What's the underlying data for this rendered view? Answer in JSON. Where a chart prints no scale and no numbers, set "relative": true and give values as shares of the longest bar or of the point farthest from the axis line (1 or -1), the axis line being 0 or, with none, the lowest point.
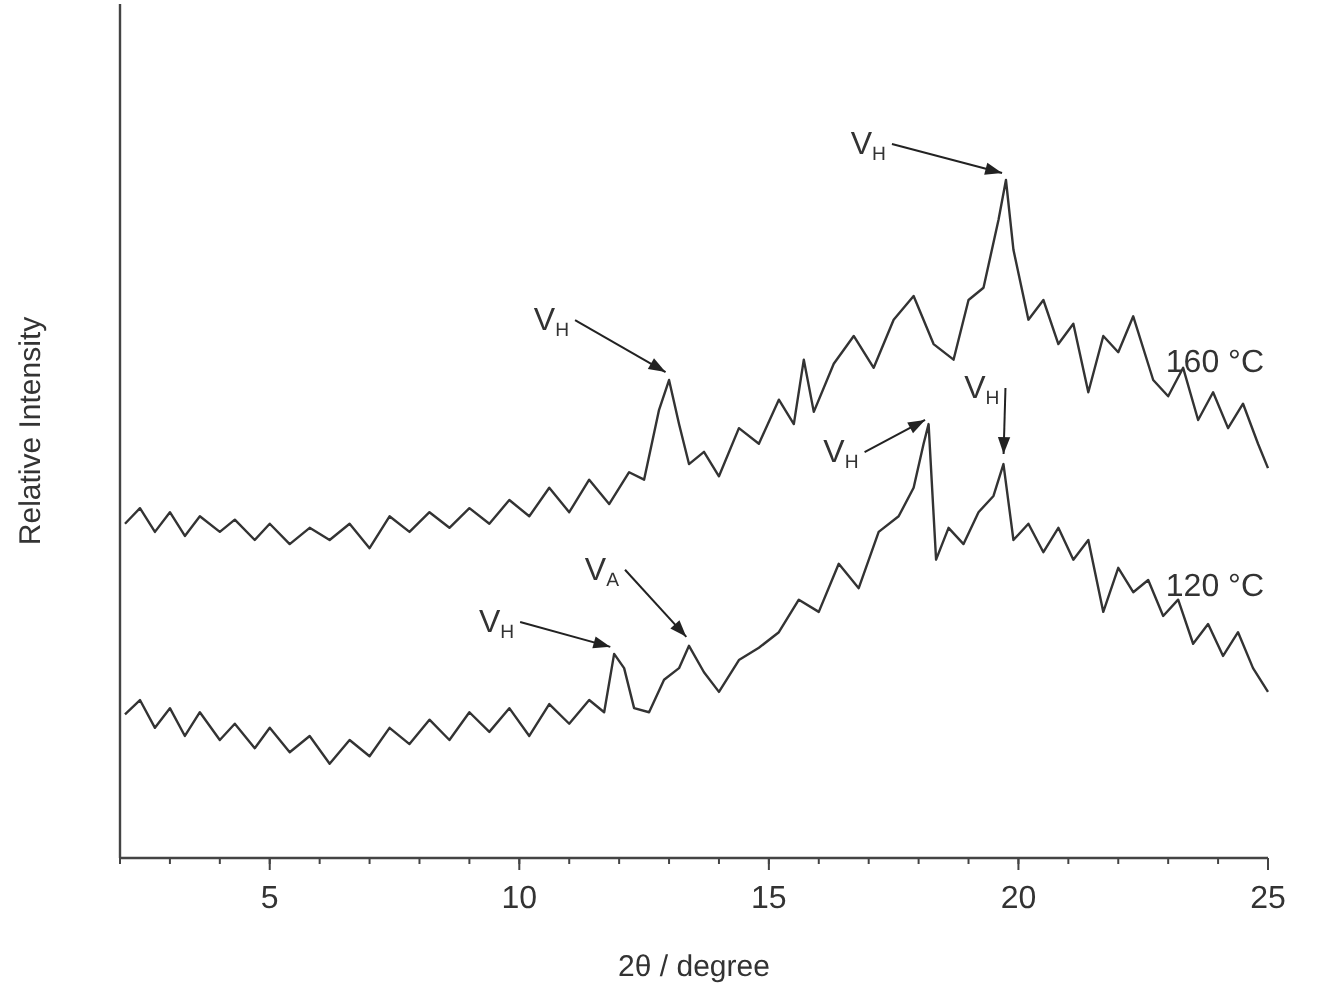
{
  "chart_data": {
    "type": "line",
    "relative": true,
    "xlabel": "2θ / degree",
    "ylabel": "Relative Intensity",
    "xlim": [
      2,
      25
    ],
    "xticks": [
      5,
      10,
      15,
      20,
      25
    ],
    "grid": false,
    "legend": false,
    "marker": "none",
    "line_style": "solid",
    "series": [
      {
        "name": "160 °C",
        "color": "#333333",
        "x": [
          2.1,
          2.4,
          2.7,
          3.0,
          3.3,
          3.6,
          4.0,
          4.3,
          4.7,
          5.0,
          5.4,
          5.8,
          6.2,
          6.6,
          7.0,
          7.4,
          7.8,
          8.2,
          8.6,
          9.0,
          9.4,
          9.8,
          10.2,
          10.6,
          11.0,
          11.4,
          11.8,
          12.2,
          12.5,
          12.8,
          13.0,
          13.2,
          13.4,
          13.7,
          14.0,
          14.4,
          14.8,
          15.2,
          15.5,
          15.7,
          15.9,
          16.3,
          16.7,
          17.1,
          17.5,
          17.9,
          18.3,
          18.7,
          19.0,
          19.3,
          19.6,
          19.75,
          19.9,
          20.2,
          20.5,
          20.8,
          21.1,
          21.4,
          21.7,
          22.0,
          22.3,
          22.7,
          23.0,
          23.3,
          23.6,
          23.9,
          24.2,
          24.5,
          24.8,
          25.0
        ],
        "values": [
          0.493,
          0.516,
          0.481,
          0.51,
          0.475,
          0.504,
          0.481,
          0.499,
          0.469,
          0.493,
          0.463,
          0.487,
          0.469,
          0.493,
          0.457,
          0.504,
          0.481,
          0.51,
          0.487,
          0.516,
          0.493,
          0.528,
          0.504,
          0.546,
          0.51,
          0.558,
          0.522,
          0.569,
          0.558,
          0.661,
          0.705,
          0.64,
          0.581,
          0.599,
          0.563,
          0.634,
          0.611,
          0.676,
          0.64,
          0.735,
          0.658,
          0.729,
          0.77,
          0.723,
          0.794,
          0.829,
          0.758,
          0.735,
          0.823,
          0.841,
          0.941,
          1,
          0.897,
          0.794,
          0.823,
          0.758,
          0.788,
          0.687,
          0.77,
          0.746,
          0.799,
          0.705,
          0.681,
          0.723,
          0.646,
          0.687,
          0.634,
          0.67,
          0.611,
          0.575
        ]
      },
      {
        "name": "120 °C",
        "color": "#333333",
        "x": [
          2.1,
          2.4,
          2.7,
          3.0,
          3.3,
          3.6,
          4.0,
          4.3,
          4.7,
          5.0,
          5.4,
          5.8,
          6.2,
          6.6,
          7.0,
          7.4,
          7.8,
          8.2,
          8.6,
          9.0,
          9.4,
          9.8,
          10.2,
          10.6,
          11.0,
          11.4,
          11.7,
          11.9,
          12.1,
          12.3,
          12.6,
          12.9,
          13.2,
          13.4,
          13.7,
          14.0,
          14.4,
          14.8,
          15.2,
          15.6,
          16.0,
          16.4,
          16.8,
          17.2,
          17.6,
          17.9,
          18.1,
          18.2,
          18.35,
          18.6,
          18.9,
          19.2,
          19.5,
          19.7,
          19.9,
          20.2,
          20.5,
          20.8,
          21.1,
          21.4,
          21.7,
          22.0,
          22.3,
          22.6,
          22.9,
          23.2,
          23.5,
          23.8,
          24.1,
          24.4,
          24.7,
          25.0
        ],
        "values": [
          0.212,
          0.233,
          0.192,
          0.221,
          0.18,
          0.215,
          0.174,
          0.198,
          0.162,
          0.192,
          0.156,
          0.18,
          0.139,
          0.174,
          0.15,
          0.192,
          0.168,
          0.204,
          0.174,
          0.215,
          0.186,
          0.221,
          0.18,
          0.227,
          0.198,
          0.233,
          0.215,
          0.301,
          0.28,
          0.221,
          0.215,
          0.263,
          0.28,
          0.313,
          0.274,
          0.245,
          0.292,
          0.31,
          0.333,
          0.381,
          0.363,
          0.434,
          0.398,
          0.481,
          0.504,
          0.546,
          0.611,
          0.64,
          0.44,
          0.487,
          0.463,
          0.51,
          0.534,
          0.581,
          0.469,
          0.493,
          0.451,
          0.487,
          0.44,
          0.469,
          0.363,
          0.428,
          0.392,
          0.41,
          0.357,
          0.381,
          0.316,
          0.345,
          0.298,
          0.333,
          0.28,
          0.245
        ]
      }
    ],
    "annotations": [
      {
        "text": "V$_{H}$",
        "x": 13.0,
        "y": 0.705
      },
      {
        "text": "V$_{H}$",
        "x": 19.75,
        "y": 1
      },
      {
        "text": "V$_{A}$",
        "x": 13.4,
        "y": 0.313
      },
      {
        "text": "V$_{H}$",
        "x": 11.9,
        "y": 0.301
      },
      {
        "text": "V$_{H}$",
        "x": 18.2,
        "y": 0.64
      },
      {
        "text": "V$_{H}$",
        "x": 19.7,
        "y": 0.581
      }
    ]
  }
}
